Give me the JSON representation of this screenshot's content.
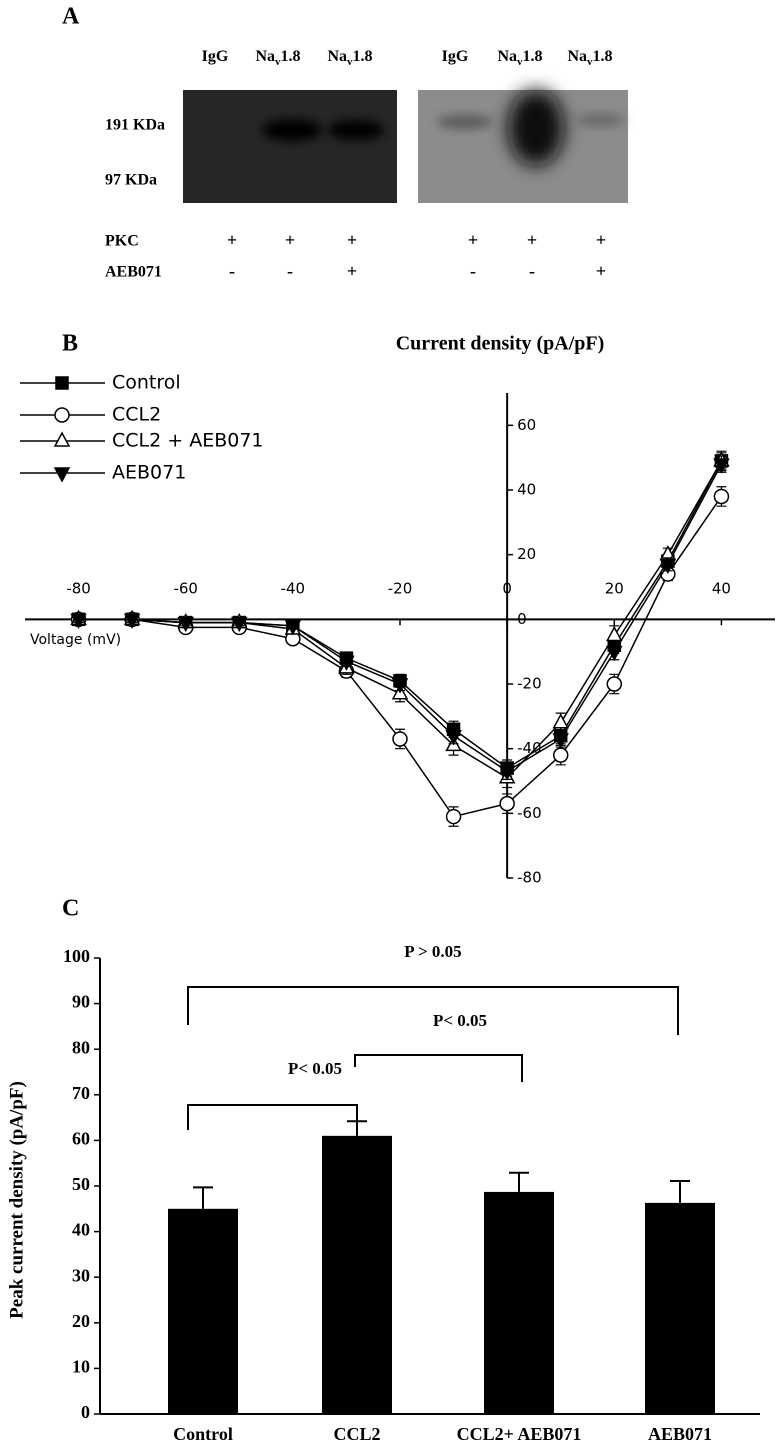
{
  "panel_labels": [
    "A",
    "B",
    "C"
  ],
  "blot": {
    "size_markers": [
      "191 KDa",
      "97 KDa"
    ],
    "lanes": [
      [
        "IgG"
      ],
      [
        "Na",
        "v",
        "1.8"
      ],
      [
        "Na",
        "v",
        "1.8"
      ],
      [
        "IgG"
      ],
      [
        "Na",
        "v",
        "1.8"
      ],
      [
        "Na",
        "v",
        "1.8"
      ]
    ],
    "rows": [
      {
        "name": "PKC",
        "marks": [
          "+",
          "+",
          "+",
          "+",
          "+",
          "+"
        ]
      },
      {
        "name": "AEB071",
        "marks": [
          "-",
          "-",
          "+",
          "-",
          "-",
          "+"
        ]
      }
    ]
  },
  "chart_data": [
    {
      "type": "line",
      "title": "Current density (pA/pF)",
      "xlabel": "Voltage (mV)",
      "x": [
        -80,
        -70,
        -60,
        -50,
        -40,
        -30,
        -20,
        -10,
        0,
        10,
        20,
        30,
        40
      ],
      "xlim": [
        -90,
        50
      ],
      "xticks": [
        -80,
        -60,
        -40,
        -20,
        0,
        20,
        40
      ],
      "ylim": [
        -80,
        70
      ],
      "yticks": [
        -80,
        -60,
        -40,
        -20,
        0,
        20,
        40,
        60
      ],
      "legend": "upper-left",
      "series": [
        {
          "name": "Control",
          "color": "#000000",
          "marker": "square",
          "filled": true,
          "values": [
            0,
            0,
            -1,
            -1,
            -2,
            -12,
            -19,
            -34,
            -46,
            -36,
            -8,
            18,
            49
          ],
          "errors": [
            1,
            1,
            1,
            1,
            1,
            1.5,
            2,
            2.5,
            2.5,
            2.5,
            2.5,
            2,
            2.5
          ]
        },
        {
          "name": "CCL2",
          "color": "#000000",
          "marker": "circle",
          "filled": false,
          "values": [
            0,
            0,
            -2.5,
            -2.5,
            -6,
            -16,
            -37,
            -61,
            -57,
            -42,
            -20,
            14,
            38
          ],
          "errors": [
            1,
            1,
            1,
            1,
            1.5,
            2,
            3,
            3,
            3,
            3,
            3,
            2,
            3
          ]
        },
        {
          "name": "CCL2 + AEB071",
          "color": "#000000",
          "marker": "triangle",
          "filled": false,
          "values": [
            0,
            0,
            -1,
            -1,
            -3,
            -15,
            -23,
            -39,
            -49,
            -32,
            -5,
            20,
            49
          ],
          "errors": [
            1,
            1,
            1,
            1,
            1,
            2,
            2.5,
            3,
            3,
            3,
            3,
            2,
            3
          ]
        },
        {
          "name": "AEB071",
          "color": "#000000",
          "marker": "triangle-down",
          "filled": true,
          "values": [
            0,
            0,
            -1,
            -1,
            -2,
            -13,
            -20,
            -36,
            -47,
            -37,
            -10,
            17,
            48
          ],
          "errors": [
            1,
            1,
            1,
            1,
            1,
            1.5,
            2,
            2.5,
            2.5,
            2.5,
            2.5,
            2,
            2.5
          ]
        }
      ]
    },
    {
      "type": "bar",
      "ylabel": "Peak current density (pA/pF)",
      "categories": [
        "Control",
        "CCL2",
        "CCL2+ AEB071",
        "AEB071"
      ],
      "values": [
        45,
        61,
        48.7,
        46.3
      ],
      "errors": [
        4.7,
        3.2,
        4.2,
        4.8
      ],
      "color": "#000000",
      "ylim": [
        0,
        100
      ],
      "yticks": [
        0,
        10,
        20,
        30,
        40,
        50,
        60,
        70,
        80,
        90,
        100
      ],
      "annotations": [
        "P > 0.05",
        "P< 0.05",
        "P< 0.05"
      ]
    }
  ]
}
